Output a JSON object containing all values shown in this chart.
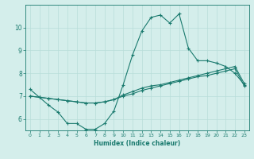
{
  "xlabel": "Humidex (Indice chaleur)",
  "background_color": "#d4eeeb",
  "grid_color": "#b8ddd9",
  "line_color": "#1a7a6e",
  "xlim": [
    -0.5,
    23.5
  ],
  "ylim": [
    5.5,
    11.0
  ],
  "yticks": [
    6,
    7,
    8,
    9,
    10
  ],
  "xticks": [
    0,
    1,
    2,
    3,
    4,
    5,
    6,
    7,
    8,
    9,
    10,
    11,
    12,
    13,
    14,
    15,
    16,
    17,
    18,
    19,
    20,
    21,
    22,
    23
  ],
  "curve1_x": [
    0,
    1,
    2,
    3,
    4,
    5,
    6,
    7,
    8,
    9,
    10,
    11,
    12,
    13,
    14,
    15,
    16,
    17,
    18,
    19,
    20,
    21,
    22,
    23
  ],
  "curve1_y": [
    7.3,
    6.95,
    6.6,
    6.3,
    5.8,
    5.8,
    5.55,
    5.55,
    5.8,
    6.35,
    7.5,
    8.8,
    9.85,
    10.45,
    10.55,
    10.2,
    10.6,
    9.1,
    8.55,
    8.55,
    8.45,
    8.3,
    8.0,
    7.5
  ],
  "curve2_x": [
    0,
    1,
    2,
    3,
    4,
    5,
    6,
    7,
    8,
    9,
    10,
    11,
    12,
    13,
    14,
    15,
    16,
    17,
    18,
    19,
    20,
    21,
    22,
    23
  ],
  "curve2_y": [
    7.0,
    6.95,
    6.9,
    6.85,
    6.8,
    6.75,
    6.7,
    6.7,
    6.75,
    6.85,
    7.0,
    7.1,
    7.25,
    7.35,
    7.45,
    7.55,
    7.65,
    7.75,
    7.85,
    7.9,
    8.0,
    8.1,
    8.2,
    7.45
  ],
  "curve3_x": [
    0,
    1,
    2,
    3,
    4,
    5,
    6,
    7,
    8,
    9,
    10,
    11,
    12,
    13,
    14,
    15,
    16,
    17,
    18,
    19,
    20,
    21,
    22,
    23
  ],
  "curve3_y": [
    7.0,
    6.95,
    6.9,
    6.85,
    6.8,
    6.75,
    6.7,
    6.7,
    6.75,
    6.85,
    7.05,
    7.2,
    7.35,
    7.45,
    7.5,
    7.6,
    7.7,
    7.8,
    7.9,
    8.0,
    8.1,
    8.2,
    8.3,
    7.55
  ]
}
